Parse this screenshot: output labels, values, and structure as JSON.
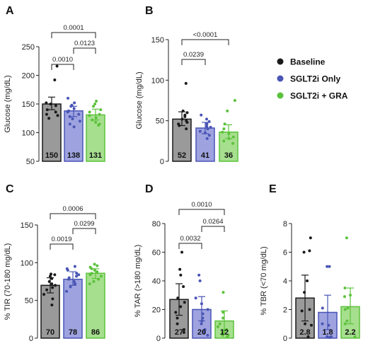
{
  "legend": {
    "items": [
      {
        "label": "Baseline",
        "color": "#1a1a1a",
        "fill": "#9a9a9a"
      },
      {
        "label": "SGLT2i Only",
        "color": "#4a55b5",
        "fill": "#9ea3e0"
      },
      {
        "label": "SGLT2i + GRA",
        "color": "#5cc23c",
        "fill": "#a6df8e"
      }
    ]
  },
  "chart_data": [
    {
      "panel": "A",
      "type": "bar",
      "ylabel": "Glucose (mg/dL)",
      "ylim": [
        50,
        250
      ],
      "yticks": [
        50,
        100,
        150,
        200,
        250
      ],
      "categories": [
        "Baseline",
        "SGLT2i Only",
        "SGLT2i + GRA"
      ],
      "values": [
        150,
        138,
        131
      ],
      "labels": [
        "150",
        "138",
        "131"
      ],
      "errors": [
        [
          140,
          162
        ],
        [
          128,
          146
        ],
        [
          122,
          141
        ]
      ],
      "points": [
        [
          216,
          192,
          152,
          150,
          147,
          140,
          136,
          132,
          130,
          125
        ],
        [
          160,
          152,
          148,
          146,
          142,
          138,
          136,
          132,
          128,
          124,
          120,
          115,
          110
        ],
        [
          155,
          150,
          146,
          140,
          136,
          132,
          130,
          126,
          122,
          118,
          115,
          113
        ]
      ],
      "comparisons": [
        {
          "from": 0,
          "to": 1,
          "label": "0.0010"
        },
        {
          "from": 1,
          "to": 2,
          "label": "0.0123"
        },
        {
          "from": 0,
          "to": 2,
          "label": "0.0001"
        }
      ]
    },
    {
      "panel": "B",
      "type": "bar",
      "ylabel": "Glucose (mg/dL)",
      "ylim": [
        0,
        150
      ],
      "yticks": [
        0,
        50,
        100,
        150
      ],
      "categories": [
        "Baseline",
        "SGLT2i Only",
        "SGLT2i + GRA"
      ],
      "values": [
        52,
        41,
        36
      ],
      "labels": [
        "52",
        "41",
        "36"
      ],
      "errors": [
        [
          44,
          61
        ],
        [
          34,
          48
        ],
        [
          28,
          45
        ]
      ],
      "points": [
        [
          96,
          62,
          60,
          57,
          55,
          52,
          50,
          48,
          46,
          44,
          40
        ],
        [
          57,
          52,
          49,
          46,
          43,
          42,
          40,
          37,
          35,
          32,
          28
        ],
        [
          75,
          62,
          46,
          40,
          36,
          34,
          30,
          28,
          25,
          22
        ]
      ],
      "comparisons": [
        {
          "from": 0,
          "to": 1,
          "label": "0.0239"
        },
        {
          "from": 0,
          "to": 2,
          "label": "<0.0001"
        }
      ]
    },
    {
      "panel": "C",
      "type": "bar",
      "ylabel": "% TIR (70-180 mg/dL)",
      "ylim": [
        0,
        150
      ],
      "yticks": [
        0,
        50,
        100,
        150
      ],
      "categories": [
        "Baseline",
        "SGLT2i Only",
        "SGLT2i + GRA"
      ],
      "values": [
        70,
        78,
        86
      ],
      "labels": [
        "70",
        "78",
        "86"
      ],
      "errors": [
        [
          60,
          80
        ],
        [
          70,
          88
        ],
        [
          79,
          92
        ]
      ],
      "points": [
        [
          85,
          84,
          82,
          79,
          75,
          72,
          70,
          67,
          64,
          58,
          52,
          44
        ],
        [
          95,
          92,
          90,
          86,
          84,
          82,
          80,
          78,
          75,
          72,
          68,
          62
        ],
        [
          98,
          96,
          94,
          92,
          90,
          88,
          86,
          84,
          82,
          78,
          75,
          72
        ]
      ],
      "comparisons": [
        {
          "from": 0,
          "to": 1,
          "label": "0.0019"
        },
        {
          "from": 1,
          "to": 2,
          "label": "0.0299"
        },
        {
          "from": 0,
          "to": 2,
          "label": "0.0006"
        }
      ]
    },
    {
      "panel": "D",
      "type": "bar",
      "ylabel": "% TAR (>180 mg/dL)",
      "ylim": [
        0,
        80
      ],
      "yticks": [
        0,
        20,
        40,
        60,
        80
      ],
      "categories": [
        "Baseline",
        "SGLT2i Only",
        "SGLT2i + GRA"
      ],
      "values": [
        27,
        20,
        12
      ],
      "labels": [
        "27",
        "20",
        "12"
      ],
      "errors": [
        [
          16,
          38
        ],
        [
          12,
          29
        ],
        [
          6,
          19
        ]
      ],
      "points": [
        [
          60,
          48,
          44,
          36,
          28,
          25,
          22,
          18,
          14,
          10,
          6,
          4
        ],
        [
          44,
          40,
          28,
          24,
          20,
          17,
          14,
          12,
          10,
          6,
          4,
          2
        ],
        [
          32,
          18,
          14,
          10,
          8,
          6,
          5,
          4,
          3,
          2,
          2,
          1
        ]
      ],
      "comparisons": [
        {
          "from": 0,
          "to": 1,
          "label": "0.0032"
        },
        {
          "from": 1,
          "to": 2,
          "label": "0.0264"
        },
        {
          "from": 0,
          "to": 2,
          "label": "0.0010"
        }
      ]
    },
    {
      "panel": "E",
      "type": "bar",
      "ylabel": "% TBR (<70 mg/dL)",
      "ylim": [
        0,
        8
      ],
      "yticks": [
        0,
        2,
        4,
        6,
        8
      ],
      "categories": [
        "Baseline",
        "SGLT2i Only",
        "SGLT2i + GRA"
      ],
      "values": [
        2.8,
        1.8,
        2.2
      ],
      "labels": [
        "2.8",
        "1.8",
        "2.2"
      ],
      "errors": [
        [
          1.2,
          4.4
        ],
        [
          0.6,
          3.0
        ],
        [
          1.0,
          3.5
        ]
      ],
      "points": [
        [
          7.0,
          6.1,
          6.0,
          4.0,
          3.2,
          2.0,
          1.9,
          1.0,
          0.9,
          0.1
        ],
        [
          5.0,
          5.0,
          2.1,
          1.0,
          0.9,
          0.1,
          0.1,
          0.05
        ],
        [
          7.0,
          3.5,
          3.0,
          2.9,
          2.1,
          2.0,
          1.2,
          1.0,
          0.1
        ]
      ],
      "comparisons": []
    }
  ]
}
